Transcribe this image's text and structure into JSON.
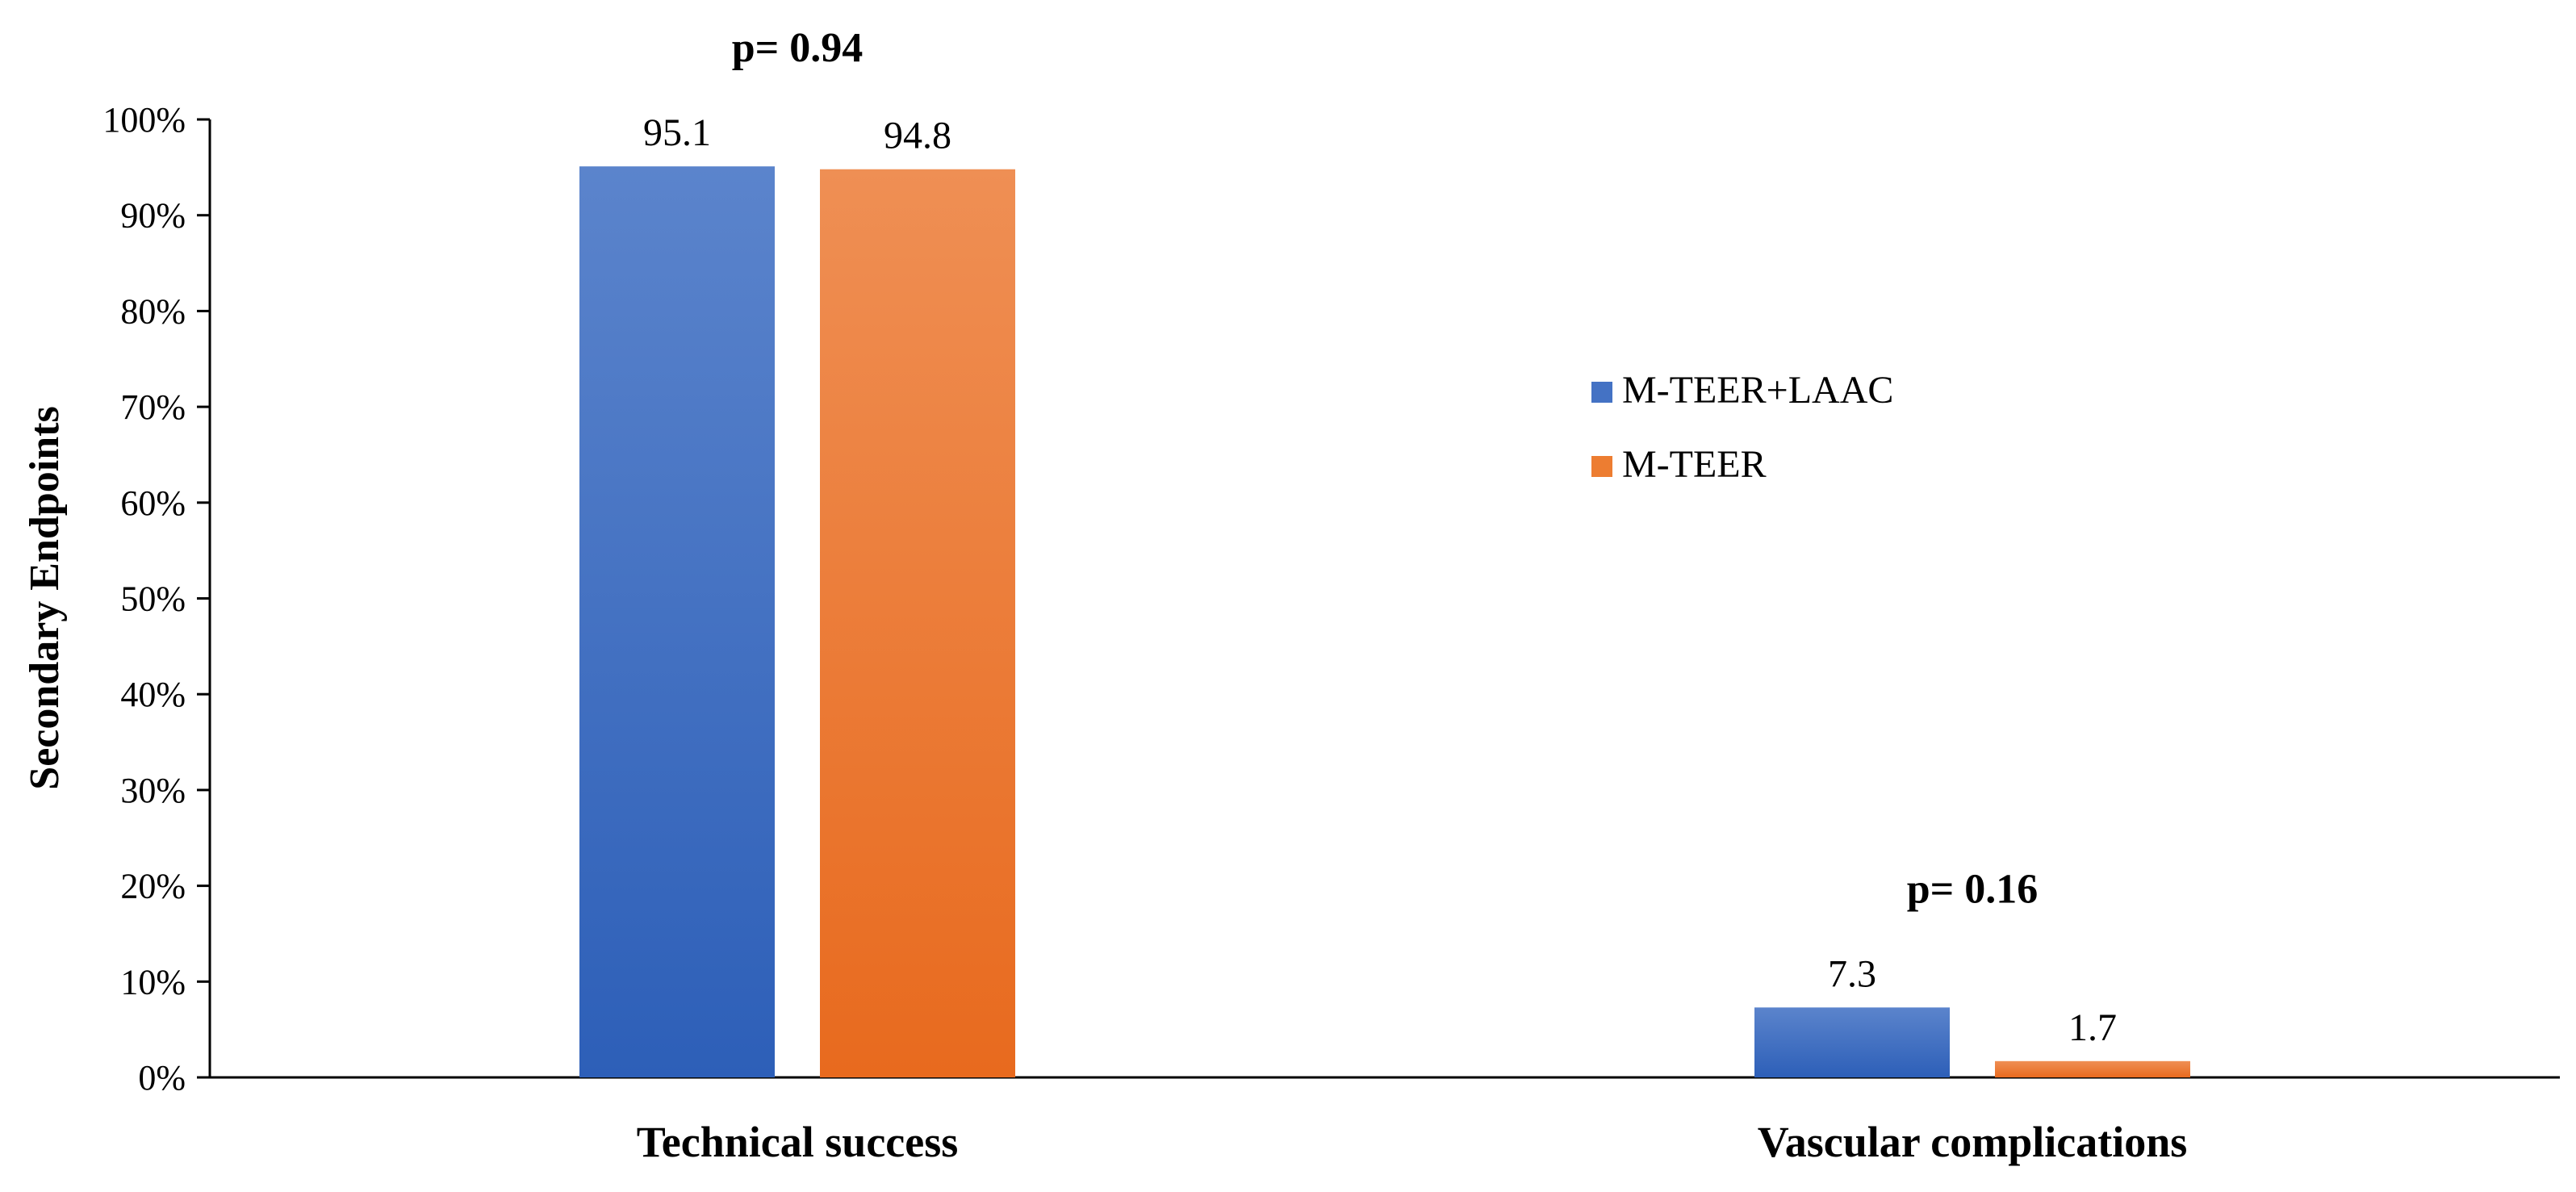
{
  "chart_data": {
    "type": "bar",
    "title": "",
    "xlabel": "",
    "ylabel": "Secondary Endpoints",
    "ylim": [
      0,
      100
    ],
    "yticks": [
      "0%",
      "10%",
      "20%",
      "30%",
      "40%",
      "50%",
      "60%",
      "70%",
      "80%",
      "90%",
      "100%"
    ],
    "grid": false,
    "legend_position": "right",
    "categories": [
      "Technical success",
      "Vascular complications"
    ],
    "series": [
      {
        "name": "M-TEER+LAAC",
        "values": [
          95.1,
          7.3
        ],
        "labels": [
          "95.1",
          "7.3"
        ],
        "color": "#4472C4"
      },
      {
        "name": "M-TEER",
        "values": [
          94.8,
          1.7
        ],
        "labels": [
          "94.8",
          "1.7"
        ],
        "color": "#ED7D31"
      }
    ],
    "annotations": [
      {
        "category": "Technical success",
        "text": "p= 0.94"
      },
      {
        "category": "Vascular complications",
        "text": "p= 0.16"
      }
    ]
  }
}
